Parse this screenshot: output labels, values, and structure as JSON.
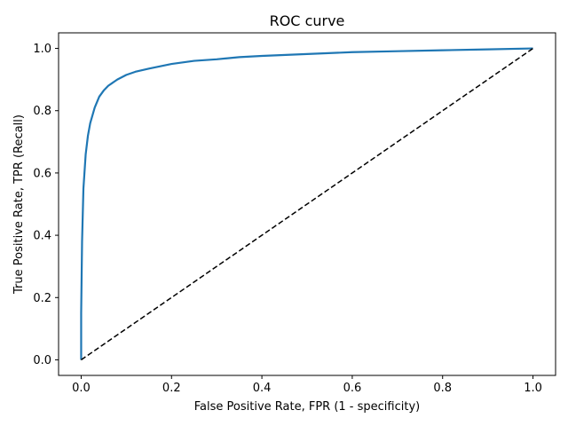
{
  "chart_data": {
    "type": "line",
    "title": "ROC curve",
    "xlabel": "False Positive Rate, FPR (1 - specificity)",
    "ylabel": "True Positive Rate, TPR (Recall)",
    "xlim": [
      -0.05,
      1.05
    ],
    "ylim": [
      -0.05,
      1.05
    ],
    "xticks": [
      "0.0",
      "0.2",
      "0.4",
      "0.6",
      "0.8",
      "1.0"
    ],
    "yticks": [
      "0.0",
      "0.2",
      "0.4",
      "0.6",
      "0.8",
      "1.0"
    ],
    "grid": false,
    "legend": "none",
    "series": [
      {
        "style": "solid",
        "color": "#1f77b4",
        "x": [
          0.0,
          0.0,
          0.002,
          0.005,
          0.01,
          0.015,
          0.02,
          0.03,
          0.04,
          0.05,
          0.06,
          0.08,
          0.1,
          0.12,
          0.15,
          0.2,
          0.25,
          0.3,
          0.35,
          0.4,
          0.5,
          0.6,
          0.7,
          0.8,
          0.9,
          1.0
        ],
        "y": [
          0.0,
          0.15,
          0.38,
          0.55,
          0.66,
          0.72,
          0.76,
          0.81,
          0.845,
          0.865,
          0.88,
          0.9,
          0.915,
          0.925,
          0.935,
          0.95,
          0.96,
          0.965,
          0.972,
          0.976,
          0.982,
          0.988,
          0.991,
          0.994,
          0.997,
          1.0
        ]
      },
      {
        "style": "dashed",
        "color": "#000000",
        "x": [
          0.0,
          1.0
        ],
        "y": [
          0.0,
          1.0
        ]
      }
    ]
  }
}
